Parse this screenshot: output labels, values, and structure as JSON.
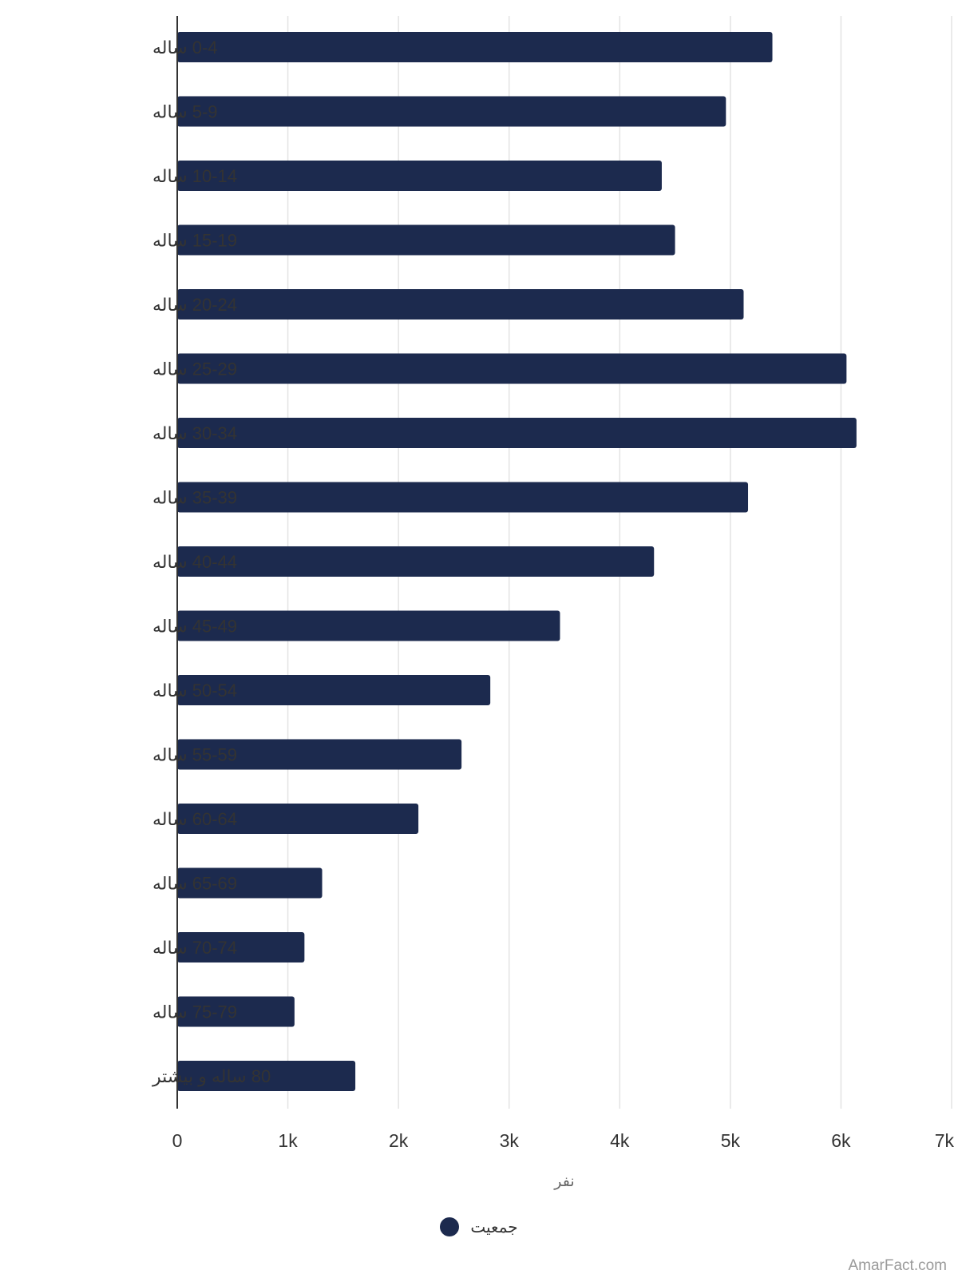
{
  "chart_data": {
    "type": "bar",
    "orientation": "horizontal",
    "categories": [
      "0-4 ساله",
      "5-9 ساله",
      "10-14 ساله",
      "15-19 ساله",
      "20-24 ساله",
      "25-29 ساله",
      "30-34 ساله",
      "35-39 ساله",
      "40-44 ساله",
      "45-49 ساله",
      "50-54 ساله",
      "55-59 ساله",
      "60-64 ساله",
      "65-69 ساله",
      "70-74 ساله",
      "75-79 ساله",
      "80 ساله و بیشتر"
    ],
    "series": [
      {
        "name": "جمعیت",
        "color": "#1c2a4e",
        "values": [
          5380,
          4960,
          4380,
          4500,
          5120,
          6050,
          6140,
          5160,
          4310,
          3460,
          2830,
          2570,
          2180,
          1310,
          1150,
          1060,
          1610
        ]
      }
    ],
    "xlim": [
      0,
      7000
    ],
    "xticks": [
      0,
      1000,
      2000,
      3000,
      4000,
      5000,
      6000,
      7000
    ],
    "xtick_labels": [
      "0",
      "1k",
      "2k",
      "3k",
      "4k",
      "5k",
      "6k",
      "7k"
    ],
    "xlabel": "نفر",
    "ylabel": "",
    "grid": true,
    "legend_position": "bottom"
  },
  "colors": {
    "gridline": "#e3e3e3",
    "axis": "#333333"
  },
  "credit": "AmarFact.com"
}
